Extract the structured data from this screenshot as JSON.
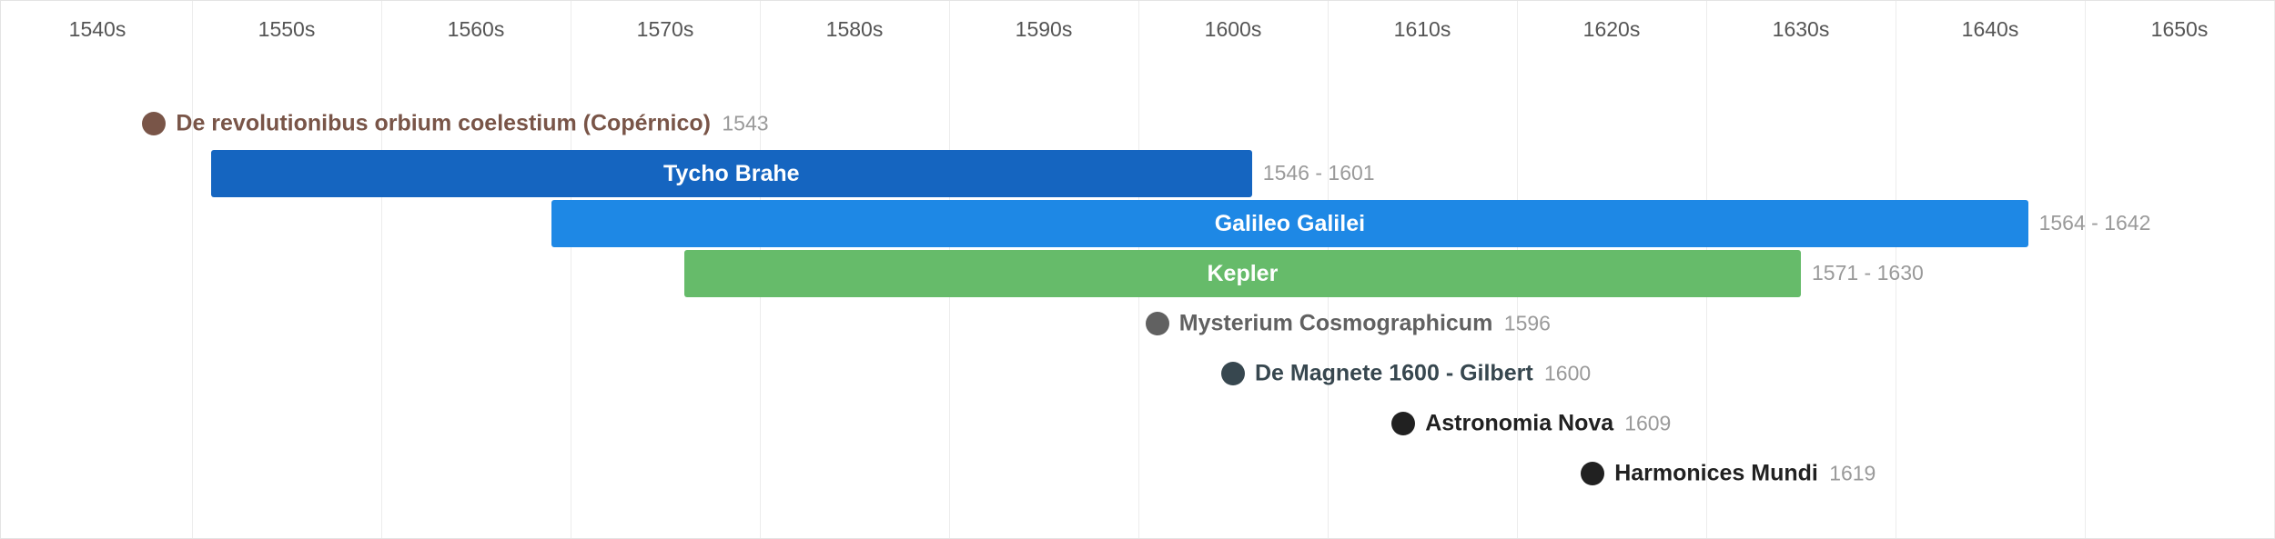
{
  "chart_data": {
    "type": "timeline",
    "axis": {
      "labels": [
        "1540s",
        "1550s",
        "1560s",
        "1570s",
        "1580s",
        "1590s",
        "1600s",
        "1610s",
        "1620s",
        "1630s",
        "1640s",
        "1650s"
      ],
      "range": [
        1535,
        1655
      ]
    },
    "rows": [
      {
        "kind": "event",
        "label": "De revolutionibus orbium coelestium (Copérnico)",
        "year": 1543,
        "year_text": "1543",
        "color": "#795548"
      },
      {
        "kind": "span",
        "label": "Tycho Brahe",
        "start": 1546,
        "end": 1601,
        "range_text": "1546 - 1601",
        "color": "#1565c0"
      },
      {
        "kind": "span",
        "label": "Galileo Galilei",
        "start": 1564,
        "end": 1642,
        "range_text": "1564 - 1642",
        "color": "#1e88e5"
      },
      {
        "kind": "span",
        "label": "Kepler",
        "start": 1571,
        "end": 1630,
        "range_text": "1571 - 1630",
        "color": "#66bb6a"
      },
      {
        "kind": "event",
        "label": "Mysterium Cosmographicum",
        "year": 1596,
        "year_text": "1596",
        "color": "#616161"
      },
      {
        "kind": "event",
        "label": "De Magnete 1600 - Gilbert",
        "year": 1600,
        "year_text": "1600",
        "color": "#37474f"
      },
      {
        "kind": "event",
        "label": "Astronomia Nova",
        "year": 1609,
        "year_text": "1609",
        "color": "#212121"
      },
      {
        "kind": "event",
        "label": "Harmonices Mundi",
        "year": 1619,
        "year_text": "1619",
        "color": "#212121"
      }
    ]
  }
}
